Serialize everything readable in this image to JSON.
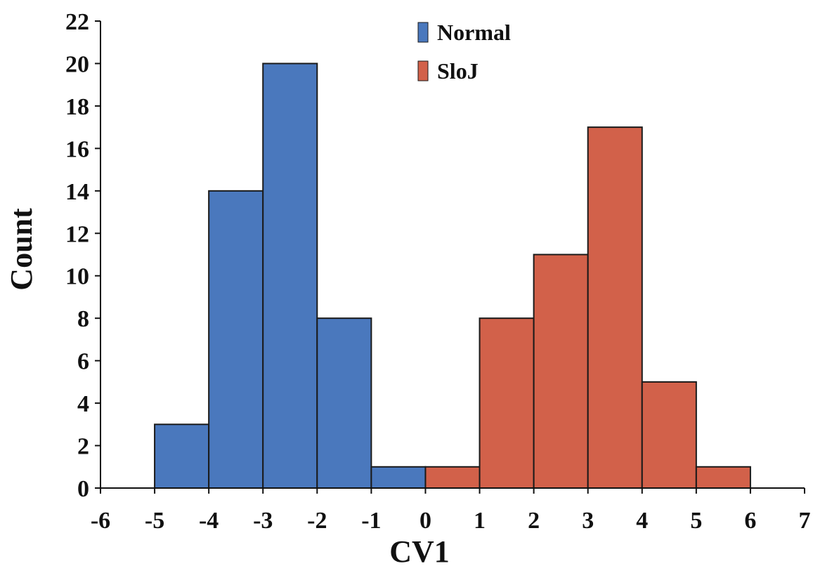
{
  "chart_data": {
    "type": "bar",
    "subtype": "histogram",
    "xlabel": "CV1",
    "ylabel": "Count",
    "xlim": [
      -6,
      7
    ],
    "ylim": [
      0,
      22
    ],
    "xticks": [
      -6,
      -5,
      -4,
      -3,
      -2,
      -1,
      0,
      1,
      2,
      3,
      4,
      5,
      6,
      7
    ],
    "yticks": [
      0,
      2,
      4,
      6,
      8,
      10,
      12,
      14,
      16,
      18,
      20,
      22
    ],
    "grid": false,
    "legend_position": "top-center",
    "series": [
      {
        "name": "Normal",
        "color": "#4a78bd",
        "bins": [
          {
            "from": -5,
            "to": -4,
            "count": 3
          },
          {
            "from": -4,
            "to": -3,
            "count": 14
          },
          {
            "from": -3,
            "to": -2,
            "count": 20
          },
          {
            "from": -2,
            "to": -1,
            "count": 8
          },
          {
            "from": -1,
            "to": 0,
            "count": 1
          }
        ]
      },
      {
        "name": "SloJ",
        "color": "#d2614a",
        "bins": [
          {
            "from": 0,
            "to": 1,
            "count": 1
          },
          {
            "from": 1,
            "to": 2,
            "count": 8
          },
          {
            "from": 2,
            "to": 3,
            "count": 11
          },
          {
            "from": 3,
            "to": 4,
            "count": 17
          },
          {
            "from": 4,
            "to": 5,
            "count": 5
          },
          {
            "from": 5,
            "to": 6,
            "count": 1
          }
        ]
      }
    ]
  }
}
